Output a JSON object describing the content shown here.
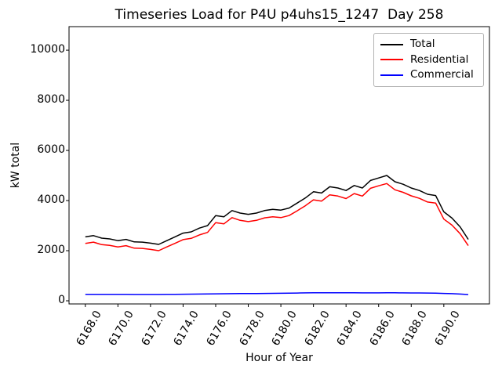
{
  "chart_data": {
    "type": "line",
    "title": "Timeseries Load for P4U p4uhs15_1247  Day 258",
    "xlabel": "Hour of Year",
    "ylabel": "kW total",
    "xlim": [
      6167.0,
      6192.8
    ],
    "ylim": [
      -125,
      10940
    ],
    "grid": false,
    "legend_position": "upper right",
    "xticks": {
      "values": [
        6168,
        6170,
        6172,
        6174,
        6176,
        6178,
        6180,
        6182,
        6184,
        6186,
        6188,
        6190
      ],
      "labels": [
        "6168.0",
        "6170.0",
        "6172.0",
        "6174.0",
        "6176.0",
        "6178.0",
        "6180.0",
        "6182.0",
        "6184.0",
        "6186.0",
        "6188.0",
        "6190.0"
      ]
    },
    "yticks": {
      "values": [
        0,
        2000,
        4000,
        6000,
        8000,
        10000
      ],
      "labels": [
        "0",
        "2000",
        "4000",
        "6000",
        "8000",
        "10000"
      ]
    },
    "x": [
      6168.0,
      6168.5,
      6169.0,
      6169.5,
      6170.0,
      6170.5,
      6171.0,
      6171.5,
      6172.0,
      6172.5,
      6173.0,
      6173.5,
      6174.0,
      6174.5,
      6175.0,
      6175.5,
      6176.0,
      6176.5,
      6177.0,
      6177.5,
      6178.0,
      6178.5,
      6179.0,
      6179.5,
      6180.0,
      6180.5,
      6181.0,
      6181.5,
      6182.0,
      6182.5,
      6183.0,
      6183.5,
      6184.0,
      6184.5,
      6185.0,
      6185.5,
      6186.0,
      6186.5,
      6187.0,
      6187.5,
      6188.0,
      6188.5,
      6189.0,
      6189.5,
      6190.0,
      6190.5,
      6191.0,
      6191.5
    ],
    "series": [
      {
        "name": "Total",
        "color": "#000000",
        "values": [
          2550,
          2600,
          2500,
          2470,
          2400,
          2450,
          2350,
          2340,
          2300,
          2250,
          2400,
          2550,
          2700,
          2750,
          2900,
          3000,
          3400,
          3350,
          3600,
          3500,
          3450,
          3500,
          3600,
          3650,
          3620,
          3700,
          3900,
          4100,
          4350,
          4300,
          4550,
          4500,
          4400,
          4600,
          4500,
          4800,
          4900,
          5000,
          4750,
          4650,
          4500,
          4400,
          4250,
          4200,
          3550,
          3300,
          2950,
          2450
        ]
      },
      {
        "name": "Residential",
        "color": "#ff0000",
        "values": [
          2290,
          2340,
          2240,
          2210,
          2150,
          2200,
          2100,
          2090,
          2050,
          2000,
          2150,
          2290,
          2440,
          2490,
          2630,
          2730,
          3120,
          3070,
          3320,
          3210,
          3160,
          3210,
          3310,
          3350,
          3320,
          3400,
          3590,
          3790,
          4030,
          3980,
          4230,
          4180,
          4080,
          4280,
          4180,
          4490,
          4590,
          4680,
          4430,
          4330,
          4190,
          4090,
          3940,
          3900,
          3260,
          3020,
          2680,
          2200
        ]
      },
      {
        "name": "Commercial",
        "color": "#0000ff",
        "values": [
          260,
          260,
          258,
          256,
          255,
          255,
          254,
          254,
          252,
          252,
          255,
          258,
          262,
          265,
          268,
          272,
          278,
          280,
          285,
          288,
          290,
          292,
          295,
          298,
          300,
          305,
          310,
          315,
          318,
          318,
          320,
          320,
          318,
          318,
          316,
          315,
          315,
          318,
          318,
          316,
          314,
          312,
          310,
          305,
          295,
          285,
          270,
          250
        ]
      }
    ]
  }
}
